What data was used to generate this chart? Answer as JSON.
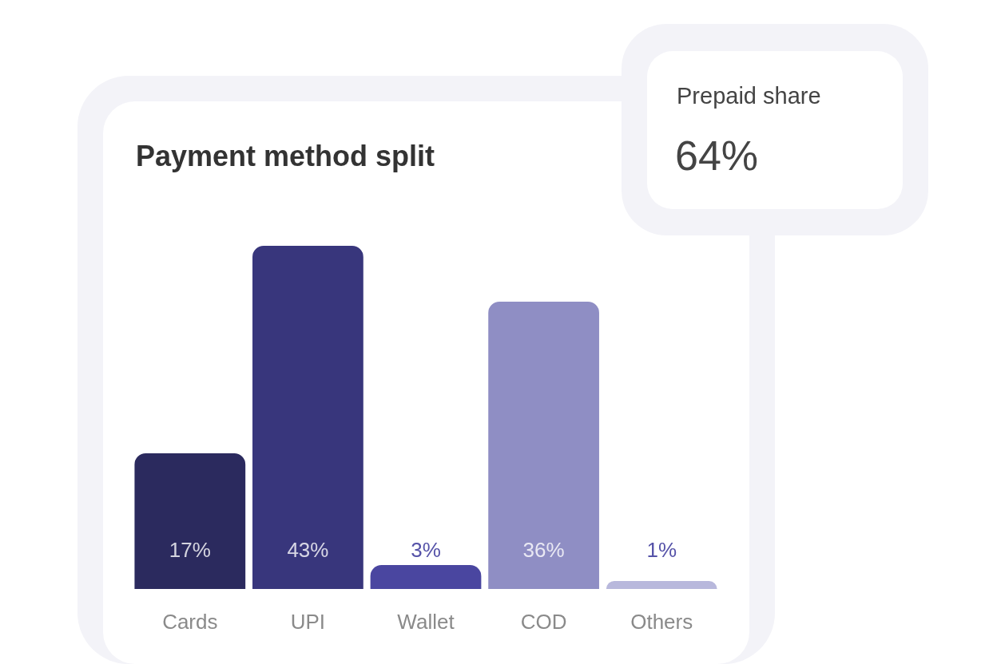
{
  "chart_data": {
    "type": "bar",
    "title": "Payment method split",
    "categories": [
      "Cards",
      "UPI",
      "Wallet",
      "COD",
      "Others"
    ],
    "values": [
      17,
      43,
      3,
      36,
      1
    ],
    "colors": [
      "#2b2a5e",
      "#38367c",
      "#4a46a0",
      "#8f8ec4",
      "#b8b8dc"
    ],
    "value_labels": [
      "17%",
      "43%",
      "3%",
      "36%",
      "1%"
    ],
    "annotations": [
      "Prepaid share",
      "64%"
    ]
  }
}
